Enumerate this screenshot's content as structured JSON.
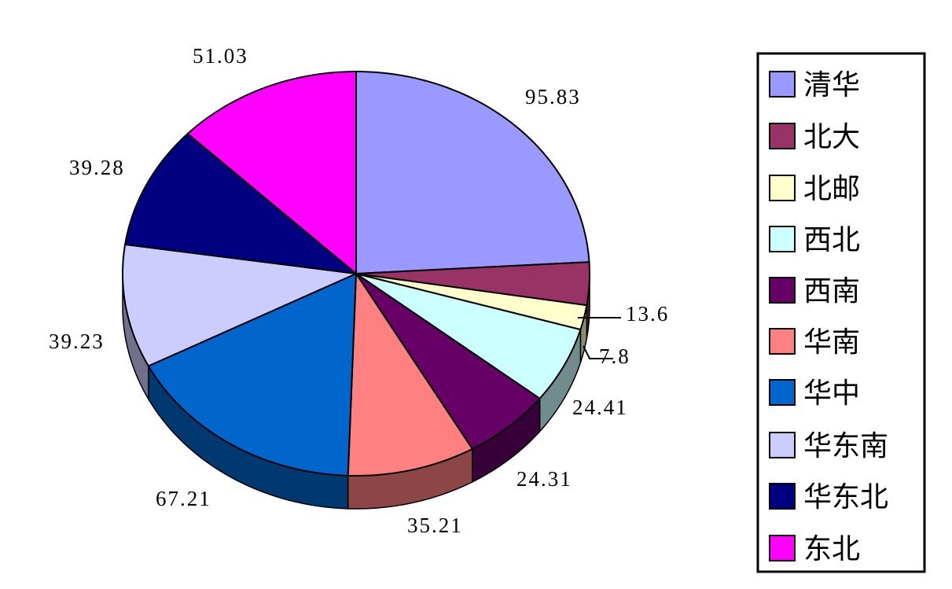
{
  "chart_data": {
    "type": "pie3d",
    "categories": [
      "清华",
      "北大",
      "北邮",
      "西北",
      "西南",
      "华南",
      "华中",
      "华东南",
      "华东北",
      "东北"
    ],
    "values": [
      95.83,
      13.6,
      7.8,
      24.41,
      24.31,
      35.21,
      67.21,
      39.23,
      39.28,
      51.03
    ],
    "colors": [
      "#9999ff",
      "#993366",
      "#ffffcc",
      "#ccffff",
      "#660066",
      "#ff8080",
      "#0066cc",
      "#ccccff",
      "#000080",
      "#ff00ff"
    ],
    "legend": "right"
  }
}
